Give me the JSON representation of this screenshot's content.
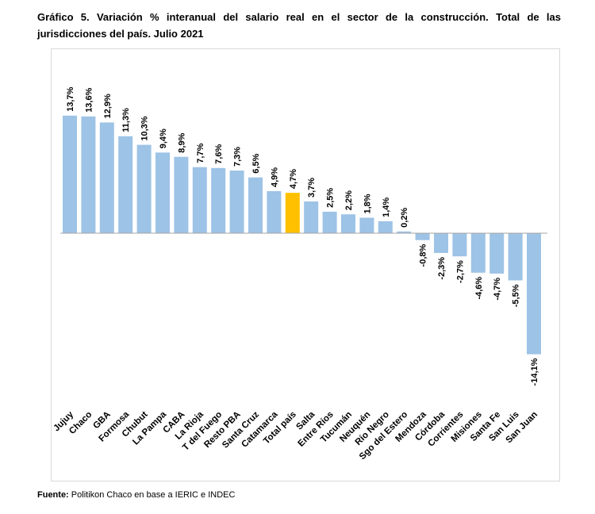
{
  "title": "Gráfico 5. Variación % interanual del salario real en el sector de la construcción. Total de las jurisdicciones del país. Julio 2021",
  "source": {
    "label": "Fuente:",
    "text": " Politikon Chaco en base a IERIC e INDEC"
  },
  "chart_data": {
    "type": "bar",
    "title": "Gráfico 5. Variación % interanual del salario real en el sector de la construcción. Total de las jurisdicciones del país. Julio 2021",
    "xlabel": "",
    "ylabel": "",
    "grid": false,
    "legend": "none",
    "colors": {
      "bar": "#9dc3e6",
      "highlight": "#ffc000",
      "axis": "#a6a6a6"
    },
    "highlight_category": "Total país",
    "categories": [
      "Jujuy",
      "Chaco",
      "GBA",
      "Formosa",
      "Chubut",
      "La Pampa",
      "CABA",
      "La Rioja",
      "T del Fuego",
      "Resto PBA",
      "Santa Cruz",
      "Catamarca",
      "Total país",
      "Salta",
      "Entre Ríos",
      "Tucumán",
      "Neuquén",
      "Río Negro",
      "Sgo del Estero",
      "Mendoza",
      "Córdoba",
      "Corrientes",
      "Misiones",
      "Santa Fe",
      "San Luis",
      "San Juan"
    ],
    "values": [
      13.7,
      13.6,
      12.9,
      11.3,
      10.3,
      9.4,
      8.9,
      7.7,
      7.6,
      7.3,
      6.5,
      4.9,
      4.7,
      3.7,
      2.5,
      2.2,
      1.8,
      1.4,
      0.2,
      -0.8,
      -2.3,
      -2.7,
      -4.6,
      -4.7,
      -5.5,
      -14.1
    ],
    "data_labels": [
      "13,7%",
      "13,6%",
      "12,9%",
      "11,3%",
      "10,3%",
      "9,4%",
      "8,9%",
      "7,7%",
      "7,6%",
      "7,3%",
      "6,5%",
      "4,9%",
      "4,7%",
      "3,7%",
      "2,5%",
      "2,2%",
      "1,8%",
      "1,4%",
      "0,2%",
      "-0,8%",
      "-2,3%",
      "-2,7%",
      "-4,6%",
      "-4,7%",
      "-5,5%",
      "-14,1%"
    ]
  }
}
